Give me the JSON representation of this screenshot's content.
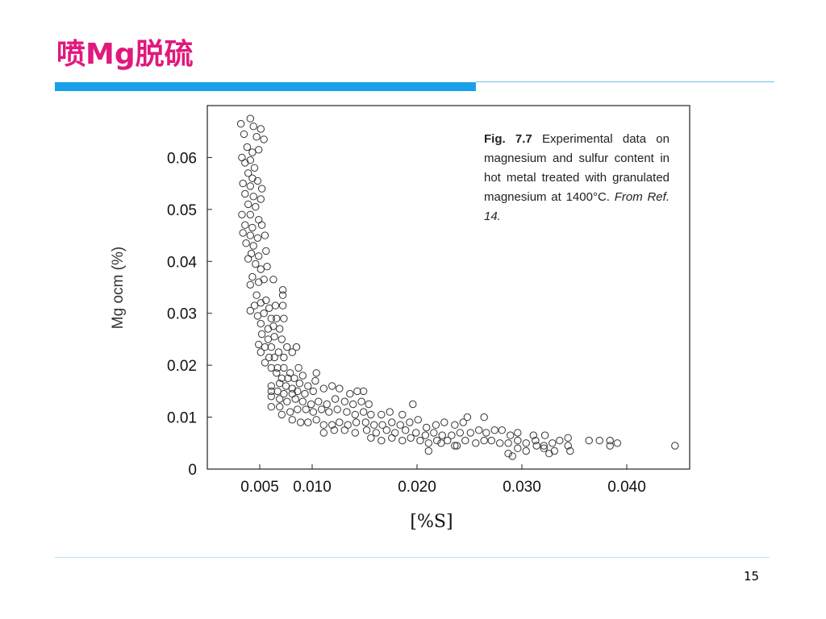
{
  "slide": {
    "title": "喷Mg脱硫",
    "page_number": "15",
    "accent_color": "#e0197d",
    "bar_color": "#1aa0e8"
  },
  "caption": {
    "label": "Fig. 7.7",
    "text": "Experimental data on magnesium and sulfur content in hot metal treated with granulated magnesium at 1400°C.",
    "source": "From Ref. 14."
  },
  "chart_data": {
    "type": "scatter",
    "title": "",
    "xlabel": "[%S]",
    "ylabel": "Mg ocm (%)",
    "xlim": [
      0.0,
      0.046
    ],
    "ylim": [
      0.0,
      0.07
    ],
    "x_ticks": [
      0.005,
      0.01,
      0.02,
      0.03,
      0.04
    ],
    "x_tick_labels": [
      "0.005",
      "0.010",
      "0.020",
      "0.030",
      "0.040"
    ],
    "y_ticks": [
      0,
      0.01,
      0.02,
      0.03,
      0.04,
      0.05,
      0.06
    ],
    "y_tick_labels": [
      "0",
      "0.01",
      "0.02",
      "0.03",
      "0.04",
      "0.05",
      "0.06"
    ],
    "grid": false,
    "marker": "open-circle",
    "points": [
      [
        0.0032,
        0.0665
      ],
      [
        0.0035,
        0.0645
      ],
      [
        0.0041,
        0.0675
      ],
      [
        0.0044,
        0.066
      ],
      [
        0.0047,
        0.064
      ],
      [
        0.0051,
        0.0655
      ],
      [
        0.0054,
        0.0635
      ],
      [
        0.0038,
        0.062
      ],
      [
        0.0043,
        0.061
      ],
      [
        0.0049,
        0.0615
      ],
      [
        0.0033,
        0.06
      ],
      [
        0.0036,
        0.059
      ],
      [
        0.0041,
        0.0595
      ],
      [
        0.0045,
        0.058
      ],
      [
        0.0039,
        0.057
      ],
      [
        0.0043,
        0.056
      ],
      [
        0.0034,
        0.055
      ],
      [
        0.0041,
        0.0545
      ],
      [
        0.0048,
        0.0555
      ],
      [
        0.0052,
        0.054
      ],
      [
        0.0036,
        0.053
      ],
      [
        0.0044,
        0.0525
      ],
      [
        0.0051,
        0.052
      ],
      [
        0.0039,
        0.051
      ],
      [
        0.0046,
        0.0505
      ],
      [
        0.0033,
        0.049
      ],
      [
        0.0041,
        0.049
      ],
      [
        0.0049,
        0.048
      ],
      [
        0.0036,
        0.047
      ],
      [
        0.0043,
        0.0465
      ],
      [
        0.0052,
        0.047
      ],
      [
        0.0034,
        0.0455
      ],
      [
        0.0041,
        0.045
      ],
      [
        0.0048,
        0.0445
      ],
      [
        0.0055,
        0.045
      ],
      [
        0.0037,
        0.0435
      ],
      [
        0.0044,
        0.043
      ],
      [
        0.0056,
        0.042
      ],
      [
        0.0042,
        0.0415
      ],
      [
        0.0049,
        0.041
      ],
      [
        0.0039,
        0.0405
      ],
      [
        0.0046,
        0.0395
      ],
      [
        0.0051,
        0.0385
      ],
      [
        0.0057,
        0.039
      ],
      [
        0.0043,
        0.037
      ],
      [
        0.0049,
        0.036
      ],
      [
        0.0054,
        0.0365
      ],
      [
        0.0041,
        0.0355
      ],
      [
        0.0063,
        0.0365
      ],
      [
        0.0072,
        0.0345
      ],
      [
        0.0047,
        0.0335
      ],
      [
        0.0051,
        0.032
      ],
      [
        0.0056,
        0.0325
      ],
      [
        0.0072,
        0.0335
      ],
      [
        0.0045,
        0.0315
      ],
      [
        0.0059,
        0.031
      ],
      [
        0.0065,
        0.0315
      ],
      [
        0.0072,
        0.0315
      ],
      [
        0.0041,
        0.0305
      ],
      [
        0.0048,
        0.0295
      ],
      [
        0.0054,
        0.03
      ],
      [
        0.0061,
        0.029
      ],
      [
        0.0066,
        0.029
      ],
      [
        0.0073,
        0.029
      ],
      [
        0.0051,
        0.028
      ],
      [
        0.0058,
        0.027
      ],
      [
        0.0063,
        0.0275
      ],
      [
        0.0069,
        0.027
      ],
      [
        0.0052,
        0.026
      ],
      [
        0.0058,
        0.025
      ],
      [
        0.0064,
        0.0255
      ],
      [
        0.0071,
        0.025
      ],
      [
        0.0049,
        0.024
      ],
      [
        0.0055,
        0.0235
      ],
      [
        0.0061,
        0.0235
      ],
      [
        0.0068,
        0.0225
      ],
      [
        0.0076,
        0.0235
      ],
      [
        0.0051,
        0.0225
      ],
      [
        0.0059,
        0.0215
      ],
      [
        0.0064,
        0.0215
      ],
      [
        0.0073,
        0.0215
      ],
      [
        0.0081,
        0.0225
      ],
      [
        0.0085,
        0.0235
      ],
      [
        0.0055,
        0.0205
      ],
      [
        0.0061,
        0.0195
      ],
      [
        0.0067,
        0.0195
      ],
      [
        0.0073,
        0.0195
      ],
      [
        0.0079,
        0.0185
      ],
      [
        0.0087,
        0.0195
      ],
      [
        0.0066,
        0.0185
      ],
      [
        0.0071,
        0.0175
      ],
      [
        0.0077,
        0.0175
      ],
      [
        0.0083,
        0.0175
      ],
      [
        0.0091,
        0.018
      ],
      [
        0.0104,
        0.0185
      ],
      [
        0.0061,
        0.016
      ],
      [
        0.0069,
        0.0165
      ],
      [
        0.0075,
        0.016
      ],
      [
        0.0081,
        0.0155
      ],
      [
        0.0088,
        0.0165
      ],
      [
        0.0096,
        0.016
      ],
      [
        0.0103,
        0.017
      ],
      [
        0.0061,
        0.015
      ],
      [
        0.0067,
        0.015
      ],
      [
        0.0073,
        0.0145
      ],
      [
        0.0081,
        0.0145
      ],
      [
        0.0086,
        0.015
      ],
      [
        0.0093,
        0.0145
      ],
      [
        0.0101,
        0.015
      ],
      [
        0.0111,
        0.0155
      ],
      [
        0.0119,
        0.016
      ],
      [
        0.0126,
        0.0155
      ],
      [
        0.0136,
        0.0145
      ],
      [
        0.0143,
        0.015
      ],
      [
        0.0149,
        0.015
      ],
      [
        0.0061,
        0.014
      ],
      [
        0.0069,
        0.0135
      ],
      [
        0.0076,
        0.013
      ],
      [
        0.0084,
        0.0135
      ],
      [
        0.0091,
        0.013
      ],
      [
        0.0099,
        0.0125
      ],
      [
        0.0106,
        0.013
      ],
      [
        0.0114,
        0.0125
      ],
      [
        0.0122,
        0.0135
      ],
      [
        0.0131,
        0.013
      ],
      [
        0.0139,
        0.0125
      ],
      [
        0.0147,
        0.013
      ],
      [
        0.0154,
        0.0125
      ],
      [
        0.0061,
        0.012
      ],
      [
        0.0069,
        0.012
      ],
      [
        0.0079,
        0.011
      ],
      [
        0.0086,
        0.0115
      ],
      [
        0.0094,
        0.0115
      ],
      [
        0.0101,
        0.011
      ],
      [
        0.0109,
        0.0115
      ],
      [
        0.0116,
        0.011
      ],
      [
        0.0124,
        0.0115
      ],
      [
        0.0133,
        0.011
      ],
      [
        0.0141,
        0.0105
      ],
      [
        0.0149,
        0.011
      ],
      [
        0.0156,
        0.0105
      ],
      [
        0.0166,
        0.0105
      ],
      [
        0.0174,
        0.011
      ],
      [
        0.0186,
        0.0105
      ],
      [
        0.0196,
        0.0125
      ],
      [
        0.0071,
        0.0105
      ],
      [
        0.0081,
        0.0095
      ],
      [
        0.0089,
        0.009
      ],
      [
        0.0096,
        0.009
      ],
      [
        0.0104,
        0.0095
      ],
      [
        0.0111,
        0.0085
      ],
      [
        0.0119,
        0.0085
      ],
      [
        0.0126,
        0.009
      ],
      [
        0.0134,
        0.0085
      ],
      [
        0.0142,
        0.009
      ],
      [
        0.0151,
        0.009
      ],
      [
        0.0159,
        0.0085
      ],
      [
        0.0167,
        0.0085
      ],
      [
        0.0176,
        0.009
      ],
      [
        0.0184,
        0.0085
      ],
      [
        0.0193,
        0.009
      ],
      [
        0.0201,
        0.0095
      ],
      [
        0.0209,
        0.008
      ],
      [
        0.0218,
        0.0085
      ],
      [
        0.0226,
        0.009
      ],
      [
        0.0236,
        0.0085
      ],
      [
        0.0244,
        0.009
      ],
      [
        0.0248,
        0.01
      ],
      [
        0.0264,
        0.01
      ],
      [
        0.0111,
        0.007
      ],
      [
        0.0121,
        0.0075
      ],
      [
        0.0131,
        0.0075
      ],
      [
        0.0141,
        0.007
      ],
      [
        0.0152,
        0.0075
      ],
      [
        0.0161,
        0.007
      ],
      [
        0.0171,
        0.0075
      ],
      [
        0.0179,
        0.007
      ],
      [
        0.0189,
        0.0075
      ],
      [
        0.0199,
        0.007
      ],
      [
        0.0208,
        0.0065
      ],
      [
        0.0216,
        0.007
      ],
      [
        0.0224,
        0.0065
      ],
      [
        0.0233,
        0.0065
      ],
      [
        0.0241,
        0.007
      ],
      [
        0.0251,
        0.007
      ],
      [
        0.0259,
        0.0075
      ],
      [
        0.0266,
        0.007
      ],
      [
        0.0274,
        0.0075
      ],
      [
        0.0281,
        0.0075
      ],
      [
        0.0289,
        0.0065
      ],
      [
        0.0296,
        0.007
      ],
      [
        0.0311,
        0.0065
      ],
      [
        0.0322,
        0.0065
      ],
      [
        0.0156,
        0.006
      ],
      [
        0.0166,
        0.0055
      ],
      [
        0.0176,
        0.006
      ],
      [
        0.0186,
        0.0055
      ],
      [
        0.0194,
        0.006
      ],
      [
        0.0203,
        0.0055
      ],
      [
        0.0211,
        0.005
      ],
      [
        0.0219,
        0.0055
      ],
      [
        0.0229,
        0.0055
      ],
      [
        0.0238,
        0.0045
      ],
      [
        0.0246,
        0.0055
      ],
      [
        0.0256,
        0.005
      ],
      [
        0.0264,
        0.0055
      ],
      [
        0.0271,
        0.0055
      ],
      [
        0.0279,
        0.005
      ],
      [
        0.0287,
        0.005
      ],
      [
        0.0296,
        0.0055
      ],
      [
        0.0304,
        0.005
      ],
      [
        0.0313,
        0.0055
      ],
      [
        0.0321,
        0.0045
      ],
      [
        0.0329,
        0.005
      ],
      [
        0.0336,
        0.0055
      ],
      [
        0.0344,
        0.006
      ],
      [
        0.0364,
        0.0055
      ],
      [
        0.0374,
        0.0055
      ],
      [
        0.0384,
        0.0055
      ],
      [
        0.0211,
        0.0035
      ],
      [
        0.0236,
        0.0045
      ],
      [
        0.0287,
        0.003
      ],
      [
        0.0296,
        0.004
      ],
      [
        0.0304,
        0.0035
      ],
      [
        0.0314,
        0.0045
      ],
      [
        0.0321,
        0.004
      ],
      [
        0.0331,
        0.0035
      ],
      [
        0.0344,
        0.0045
      ],
      [
        0.0384,
        0.0045
      ],
      [
        0.0391,
        0.005
      ],
      [
        0.0446,
        0.0045
      ],
      [
        0.0223,
        0.005
      ],
      [
        0.0291,
        0.0025
      ],
      [
        0.0326,
        0.003
      ],
      [
        0.0346,
        0.0035
      ]
    ]
  }
}
